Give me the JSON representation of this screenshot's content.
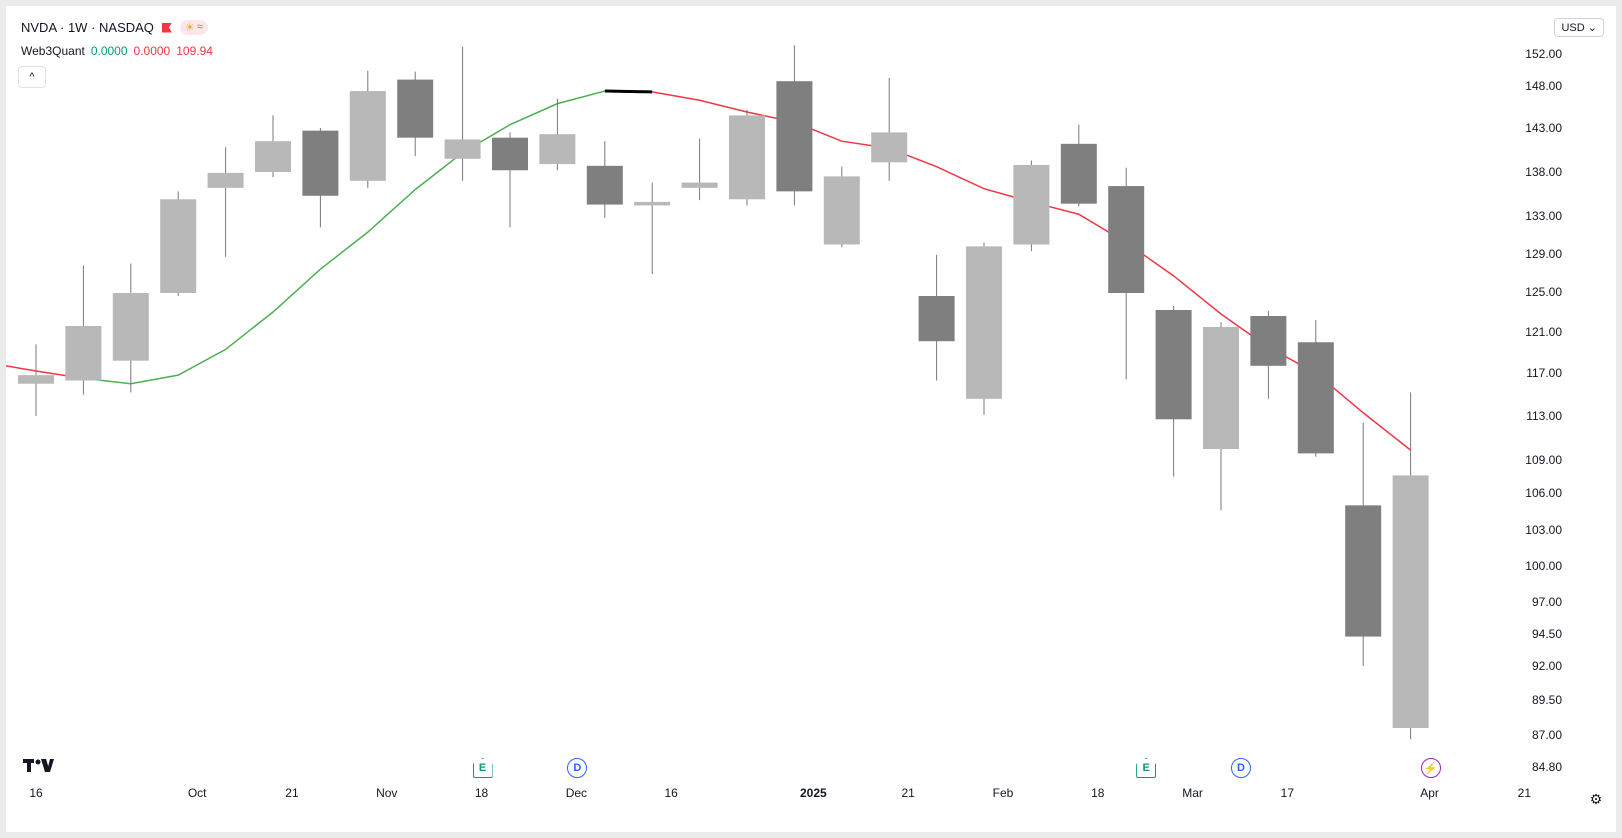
{
  "header": {
    "symbol_title": "NVDA · 1W · NASDAQ",
    "currency": "USD"
  },
  "indicator": {
    "name": "Web3Quant",
    "value1": "0.0000",
    "value2": "0.0000",
    "value3": "109.94"
  },
  "icons": {
    "flag": "flag-icon",
    "sun": "sun-icon",
    "wave": "wave-icon",
    "collapse": "chevron-up-icon",
    "logo": "tradingview-logo-icon",
    "settings": "gear-icon"
  },
  "colors": {
    "up_candle": "#b8b8b8",
    "down_candle": "#7f7f7f",
    "ma_green": "#4caf50",
    "ma_red": "#f23645",
    "highlight": "#000000"
  },
  "events": [
    {
      "type": "E",
      "label": "E",
      "date": "2024-11-20"
    },
    {
      "type": "D",
      "label": "D",
      "date": "2024-12-05"
    },
    {
      "type": "E",
      "label": "E",
      "date": "2025-02-26"
    },
    {
      "type": "D",
      "label": "D",
      "date": "2025-03-12"
    },
    {
      "type": "bolt",
      "label": "⚡",
      "date": "2025-04-01"
    }
  ],
  "chart_data": {
    "type": "candlestick",
    "interval": "1W",
    "y_ticks": [
      "152.00",
      "148.00",
      "143.00",
      "138.00",
      "133.00",
      "129.00",
      "125.00",
      "121.00",
      "117.00",
      "113.00",
      "109.00",
      "106.00",
      "103.00",
      "100.00",
      "97.00",
      "94.50",
      "92.00",
      "89.50",
      "87.00",
      "84.80"
    ],
    "x_ticks": [
      "16",
      "Oct",
      "21",
      "Nov",
      "18",
      "Dec",
      "16",
      "2025",
      "21",
      "Feb",
      "18",
      "Mar",
      "17",
      "Apr",
      "21"
    ],
    "candles": [
      {
        "o": 116.0,
        "h": 119.8,
        "l": 113.0,
        "c": 116.8
      },
      {
        "o": 116.3,
        "h": 127.8,
        "l": 115.0,
        "c": 121.6
      },
      {
        "o": 118.2,
        "h": 128.0,
        "l": 115.2,
        "c": 124.9
      },
      {
        "o": 124.9,
        "h": 135.8,
        "l": 124.6,
        "c": 134.9
      },
      {
        "o": 136.2,
        "h": 140.8,
        "l": 128.7,
        "c": 137.9
      },
      {
        "o": 138.0,
        "h": 144.5,
        "l": 137.4,
        "c": 141.5
      },
      {
        "o": 142.7,
        "h": 143.0,
        "l": 131.8,
        "c": 135.3
      },
      {
        "o": 137.0,
        "h": 149.9,
        "l": 136.2,
        "c": 147.4
      },
      {
        "o": 148.8,
        "h": 149.8,
        "l": 139.8,
        "c": 141.9
      },
      {
        "o": 139.5,
        "h": 152.9,
        "l": 137.0,
        "c": 141.7
      },
      {
        "o": 141.9,
        "h": 142.5,
        "l": 131.8,
        "c": 138.2
      },
      {
        "o": 138.9,
        "h": 146.5,
        "l": 138.2,
        "c": 142.3
      },
      {
        "o": 138.7,
        "h": 141.5,
        "l": 132.8,
        "c": 134.3
      },
      {
        "o": 134.2,
        "h": 136.8,
        "l": 126.9,
        "c": 134.6
      },
      {
        "o": 136.2,
        "h": 141.8,
        "l": 134.8,
        "c": 136.8
      },
      {
        "o": 134.9,
        "h": 145.2,
        "l": 134.2,
        "c": 144.5
      },
      {
        "o": 148.6,
        "h": 153.1,
        "l": 134.2,
        "c": 135.8
      },
      {
        "o": 130.0,
        "h": 138.6,
        "l": 129.7,
        "c": 137.5
      },
      {
        "o": 139.1,
        "h": 149.0,
        "l": 137.0,
        "c": 142.5
      },
      {
        "o": 124.6,
        "h": 128.9,
        "l": 116.3,
        "c": 120.1
      },
      {
        "o": 114.6,
        "h": 130.2,
        "l": 113.1,
        "c": 129.8
      },
      {
        "o": 130.0,
        "h": 139.3,
        "l": 129.3,
        "c": 138.8
      },
      {
        "o": 141.2,
        "h": 143.4,
        "l": 134.1,
        "c": 134.4
      },
      {
        "o": 136.4,
        "h": 138.5,
        "l": 116.4,
        "c": 124.9
      },
      {
        "o": 123.2,
        "h": 123.6,
        "l": 107.5,
        "c": 112.7
      },
      {
        "o": 110.0,
        "h": 122.0,
        "l": 104.6,
        "c": 121.5
      },
      {
        "o": 122.6,
        "h": 123.1,
        "l": 114.6,
        "c": 117.7
      },
      {
        "o": 120.0,
        "h": 122.2,
        "l": 109.3,
        "c": 109.6
      },
      {
        "o": 105.0,
        "h": 112.4,
        "l": 92.0,
        "c": 94.3
      },
      {
        "o": 87.5,
        "h": 115.2,
        "l": 86.7,
        "c": 107.6
      }
    ],
    "moving_average": [
      117.2,
      116.5,
      116.0,
      116.8,
      119.3,
      123.0,
      127.4,
      131.3,
      136.0,
      140.2,
      143.4,
      145.9,
      147.4,
      147.3,
      146.3,
      144.9,
      143.7,
      141.5,
      140.7,
      138.6,
      136.1,
      134.6,
      133.2,
      130.2,
      126.7,
      122.8,
      119.5,
      117.0,
      113.3,
      109.9
    ],
    "ma_trend_up_until_index": 12
  }
}
